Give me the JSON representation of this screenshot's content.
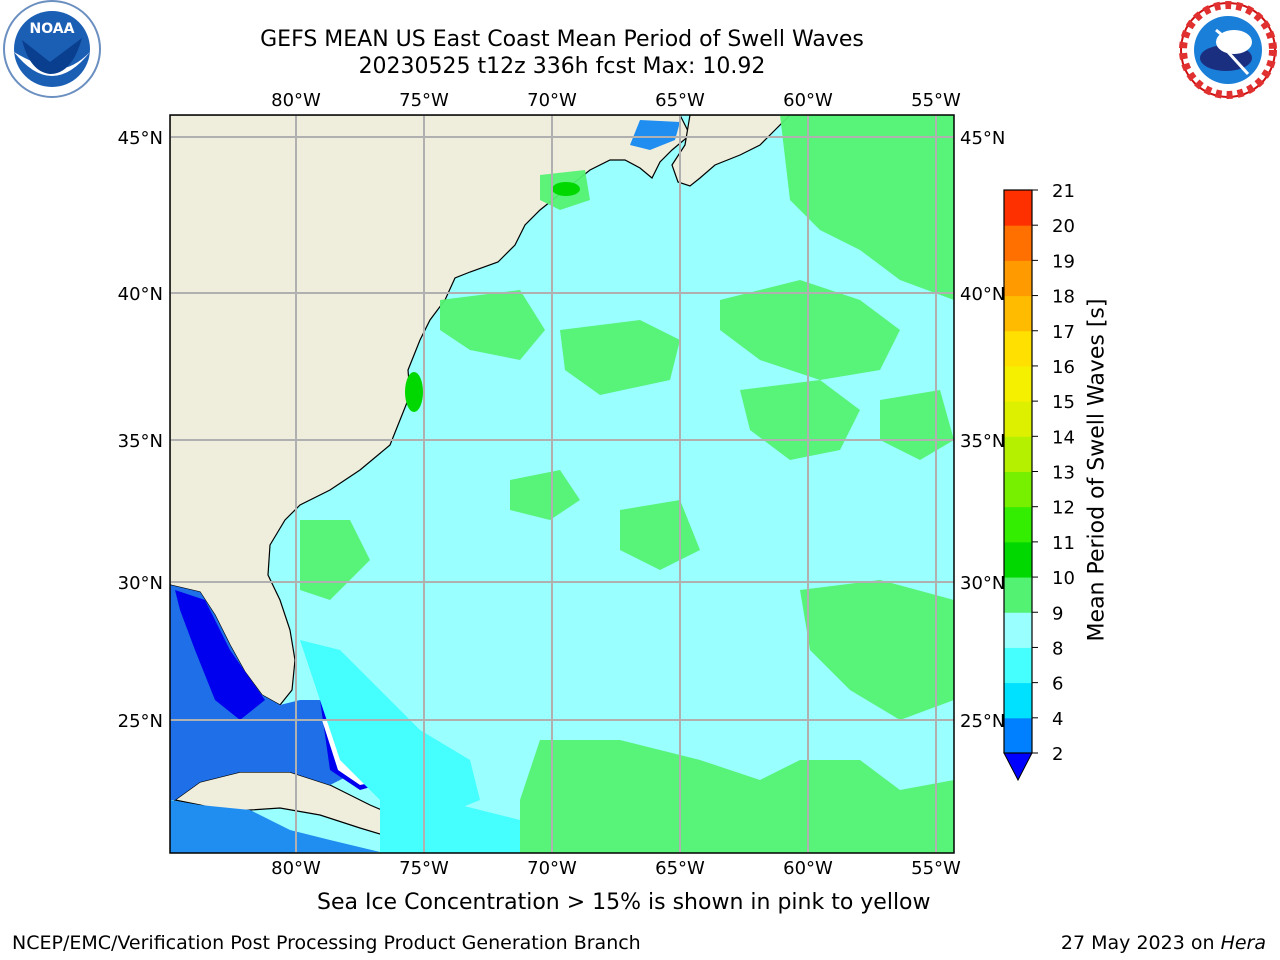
{
  "header": {
    "title_line1": "GEFS MEAN US East Coast Mean Period of Swell Waves",
    "title_line2": "20230525 t12z 336h fcst   Max: 10.92"
  },
  "map": {
    "lon_ticks": [
      "80°W",
      "75°W",
      "70°W",
      "65°W",
      "60°W",
      "55°W"
    ],
    "lat_ticks": [
      "45°N",
      "40°N",
      "35°N",
      "30°N",
      "25°N"
    ],
    "colors": {
      "land": "#efeedd",
      "ocean_main": "#99ffff",
      "green": "#54f272"
    }
  },
  "colorbar": {
    "label": "Mean Period of Swell Waves [s]",
    "ticks": [
      "2",
      "4",
      "6",
      "8",
      "9",
      "10",
      "11",
      "12",
      "13",
      "14",
      "15",
      "16",
      "17",
      "18",
      "19",
      "20",
      "21"
    ],
    "colors": [
      "#0080ff",
      "#00e0ff",
      "#45ffff",
      "#99ffff",
      "#54f272",
      "#00d800",
      "#33ee00",
      "#77f000",
      "#b4f000",
      "#ddf000",
      "#f4f000",
      "#ffe000",
      "#ffbb00",
      "#ff9a00",
      "#ff7000",
      "#ff3000",
      "#ff0000"
    ],
    "under_color": "#0000ff"
  },
  "footer": {
    "note": "Sea Ice Concentration > 15% is shown in pink to yellow",
    "credit": "NCEP/EMC/Verification Post Processing Product Generation Branch",
    "date": "27 May 2023 on ",
    "date_em": "Hera"
  }
}
